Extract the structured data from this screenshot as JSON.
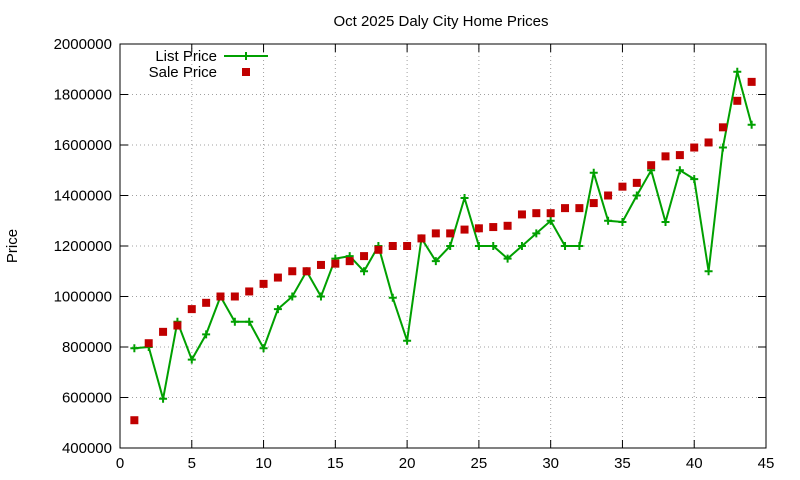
{
  "chart_data": {
    "type": "line",
    "title": "Oct 2025 Daly City Home Prices",
    "xlabel": "",
    "ylabel": "Price",
    "xlim": [
      0,
      45
    ],
    "ylim": [
      400000,
      2000000
    ],
    "x_ticks": [
      0,
      5,
      10,
      15,
      20,
      25,
      30,
      35,
      40,
      45
    ],
    "y_ticks": [
      400000,
      600000,
      800000,
      1000000,
      1200000,
      1400000,
      1600000,
      1800000,
      2000000
    ],
    "grid": true,
    "legend_position": "top-left",
    "series": [
      {
        "name": "List Price",
        "style": "line-with-plus-markers",
        "color": "#00a000",
        "x": [
          1,
          2,
          3,
          4,
          5,
          6,
          7,
          8,
          9,
          10,
          11,
          12,
          13,
          14,
          15,
          16,
          17,
          18,
          19,
          20,
          21,
          22,
          23,
          24,
          25,
          26,
          27,
          28,
          29,
          30,
          31,
          32,
          33,
          34,
          35,
          36,
          37,
          38,
          39,
          40,
          41,
          42,
          43,
          44
        ],
        "values": [
          795000,
          800000,
          595000,
          900000,
          750000,
          850000,
          1000000,
          900000,
          900000,
          795000,
          950000,
          1000000,
          1100000,
          1000000,
          1150000,
          1160000,
          1100000,
          1200000,
          995000,
          825000,
          1230000,
          1140000,
          1200000,
          1390000,
          1200000,
          1200000,
          1150000,
          1200000,
          1250000,
          1300000,
          1200000,
          1200000,
          1490000,
          1300000,
          1295000,
          1400000,
          1500000,
          1295000,
          1500000,
          1465000,
          1100000,
          1590000,
          1890000,
          1680000
        ]
      },
      {
        "name": "Sale Price",
        "style": "square-markers",
        "color": "#c00000",
        "x": [
          1,
          2,
          3,
          4,
          5,
          6,
          7,
          8,
          9,
          10,
          11,
          12,
          13,
          14,
          15,
          16,
          17,
          18,
          19,
          20,
          21,
          22,
          23,
          24,
          25,
          26,
          27,
          28,
          29,
          30,
          31,
          32,
          33,
          34,
          35,
          36,
          37,
          38,
          39,
          40,
          41,
          42,
          43,
          44
        ],
        "values": [
          510000,
          815000,
          860000,
          885000,
          950000,
          975000,
          1000000,
          1000000,
          1020000,
          1050000,
          1075000,
          1100000,
          1100000,
          1125000,
          1130000,
          1140000,
          1160000,
          1185000,
          1200000,
          1200000,
          1230000,
          1250000,
          1250000,
          1265000,
          1270000,
          1275000,
          1280000,
          1325000,
          1330000,
          1330000,
          1350000,
          1350000,
          1370000,
          1400000,
          1435000,
          1450000,
          1520000,
          1555000,
          1560000,
          1590000,
          1610000,
          1670000,
          1775000,
          1850000
        ]
      }
    ]
  }
}
